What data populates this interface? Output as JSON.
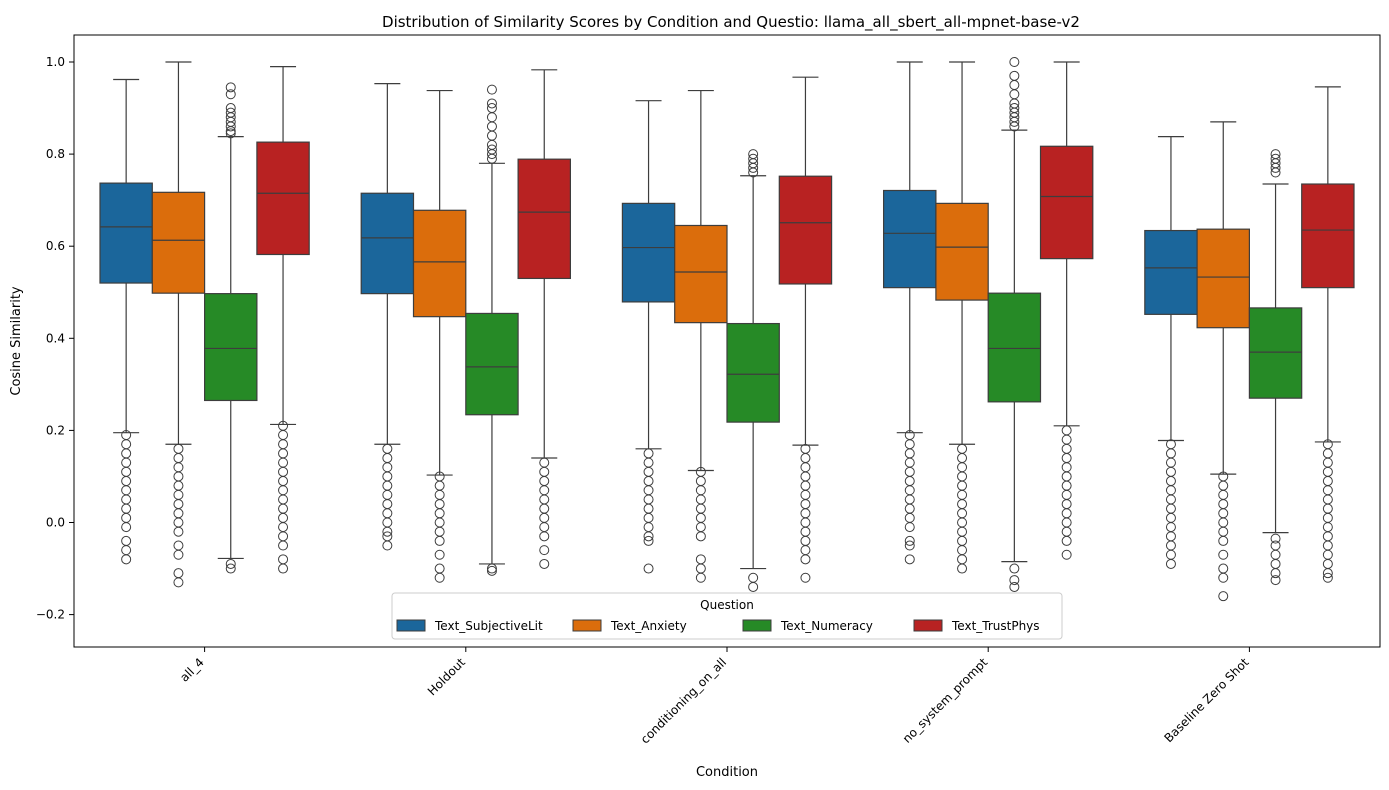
{
  "chart_data": {
    "type": "box",
    "title": "Distribution of Similarity Scores by Condition and Questio: llama_all_sbert_all-mpnet-base-v2",
    "xlabel": "Condition",
    "ylabel": "Cosine Similarity",
    "ylim": [
      -0.26,
      1.06
    ],
    "yticks": [
      -0.2,
      0.0,
      0.2,
      0.4,
      0.6,
      0.8,
      1.0
    ],
    "ytick_labels": [
      "−0.2",
      "0.0",
      "0.2",
      "0.4",
      "0.6",
      "0.8",
      "1.0"
    ],
    "categories": [
      "all_4",
      "Holdout",
      "conditioning_on_all",
      "no_system_prompt",
      "Baseline Zero Shot"
    ],
    "legend": {
      "title": "Question",
      "placement": "lower-center"
    },
    "grid": false,
    "series": [
      {
        "name": "Text_SubjectiveLit",
        "color": "#1f77b4",
        "boxes": [
          {
            "whisker_low": 0.195,
            "q1": 0.52,
            "median": 0.642,
            "q3": 0.737,
            "whisker_high": 0.962,
            "outliers": [
              0.19,
              0.17,
              0.15,
              0.13,
              0.11,
              0.09,
              0.07,
              0.05,
              0.03,
              0.01,
              -0.01,
              -0.04,
              -0.06,
              -0.08
            ]
          },
          {
            "whisker_low": 0.17,
            "q1": 0.497,
            "median": 0.618,
            "q3": 0.715,
            "whisker_high": 0.953,
            "outliers": [
              0.16,
              0.14,
              0.12,
              0.1,
              0.08,
              0.06,
              0.04,
              0.02,
              0.0,
              -0.02,
              -0.03,
              -0.05
            ]
          },
          {
            "whisker_low": 0.16,
            "q1": 0.479,
            "median": 0.597,
            "q3": 0.693,
            "whisker_high": 0.916,
            "outliers": [
              0.15,
              0.13,
              0.11,
              0.09,
              0.07,
              0.05,
              0.03,
              0.01,
              -0.01,
              -0.03,
              -0.04,
              -0.1
            ]
          },
          {
            "whisker_low": 0.195,
            "q1": 0.51,
            "median": 0.628,
            "q3": 0.721,
            "whisker_high": 1.0,
            "outliers": [
              0.19,
              0.17,
              0.15,
              0.13,
              0.11,
              0.09,
              0.07,
              0.05,
              0.03,
              0.01,
              -0.01,
              -0.04,
              -0.05,
              -0.08
            ]
          },
          {
            "whisker_low": 0.178,
            "q1": 0.452,
            "median": 0.553,
            "q3": 0.634,
            "whisker_high": 0.838,
            "outliers": [
              0.17,
              0.15,
              0.13,
              0.11,
              0.09,
              0.07,
              0.05,
              0.03,
              0.01,
              -0.01,
              -0.03,
              -0.05,
              -0.07,
              -0.09
            ]
          }
        ]
      },
      {
        "name": "Text_Anxiety",
        "color": "#ff7f0e",
        "boxes": [
          {
            "whisker_low": 0.17,
            "q1": 0.498,
            "median": 0.613,
            "q3": 0.717,
            "whisker_high": 1.0,
            "outliers": [
              0.16,
              0.14,
              0.12,
              0.1,
              0.08,
              0.06,
              0.04,
              0.02,
              0.0,
              -0.02,
              -0.05,
              -0.07,
              -0.11,
              -0.13
            ]
          },
          {
            "whisker_low": 0.103,
            "q1": 0.447,
            "median": 0.566,
            "q3": 0.678,
            "whisker_high": 0.938,
            "outliers": [
              0.1,
              0.08,
              0.06,
              0.04,
              0.02,
              0.0,
              -0.02,
              -0.04,
              -0.07,
              -0.1,
              -0.12
            ]
          },
          {
            "whisker_low": 0.113,
            "q1": 0.434,
            "median": 0.544,
            "q3": 0.645,
            "whisker_high": 0.938,
            "outliers": [
              0.11,
              0.09,
              0.07,
              0.05,
              0.03,
              0.01,
              -0.01,
              -0.03,
              -0.08,
              -0.1,
              -0.12
            ]
          },
          {
            "whisker_low": 0.17,
            "q1": 0.483,
            "median": 0.598,
            "q3": 0.693,
            "whisker_high": 1.0,
            "outliers": [
              0.16,
              0.14,
              0.12,
              0.1,
              0.08,
              0.06,
              0.04,
              0.02,
              0.0,
              -0.02,
              -0.04,
              -0.06,
              -0.08,
              -0.1
            ]
          },
          {
            "whisker_low": 0.105,
            "q1": 0.423,
            "median": 0.533,
            "q3": 0.637,
            "whisker_high": 0.87,
            "outliers": [
              0.1,
              0.08,
              0.06,
              0.04,
              0.02,
              0.0,
              -0.02,
              -0.04,
              -0.07,
              -0.1,
              -0.12,
              -0.16
            ]
          }
        ]
      },
      {
        "name": "Text_Numeracy",
        "color": "#2ca02c",
        "boxes": [
          {
            "whisker_low": -0.078,
            "q1": 0.265,
            "median": 0.378,
            "q3": 0.497,
            "whisker_high": 0.838,
            "outliers": [
              0.945,
              0.93,
              0.9,
              0.89,
              0.88,
              0.87,
              0.86,
              0.85,
              0.845,
              -0.09,
              -0.1
            ]
          },
          {
            "whisker_low": -0.09,
            "q1": 0.234,
            "median": 0.338,
            "q3": 0.454,
            "whisker_high": 0.78,
            "outliers": [
              0.94,
              0.91,
              0.9,
              0.88,
              0.86,
              0.84,
              0.82,
              0.81,
              0.8,
              0.79,
              -0.1,
              -0.105
            ]
          },
          {
            "whisker_low": -0.1,
            "q1": 0.218,
            "median": 0.322,
            "q3": 0.432,
            "whisker_high": 0.753,
            "outliers": [
              0.8,
              0.79,
              0.78,
              0.77,
              0.76,
              -0.12,
              -0.14
            ]
          },
          {
            "whisker_low": -0.085,
            "q1": 0.262,
            "median": 0.378,
            "q3": 0.498,
            "whisker_high": 0.852,
            "outliers": [
              1.0,
              0.97,
              0.95,
              0.93,
              0.91,
              0.9,
              0.89,
              0.88,
              0.87,
              0.86,
              -0.1,
              -0.125,
              -0.14
            ]
          },
          {
            "whisker_low": -0.022,
            "q1": 0.27,
            "median": 0.37,
            "q3": 0.466,
            "whisker_high": 0.735,
            "outliers": [
              0.8,
              0.79,
              0.78,
              0.77,
              0.76,
              -0.035,
              -0.05,
              -0.07,
              -0.09,
              -0.11,
              -0.125
            ]
          }
        ]
      },
      {
        "name": "Text_TrustPhys",
        "color": "#d62728",
        "boxes": [
          {
            "whisker_low": 0.213,
            "q1": 0.582,
            "median": 0.715,
            "q3": 0.826,
            "whisker_high": 0.99,
            "outliers": [
              0.21,
              0.19,
              0.17,
              0.15,
              0.13,
              0.11,
              0.09,
              0.07,
              0.05,
              0.03,
              0.01,
              -0.01,
              -0.03,
              -0.05,
              -0.08,
              -0.1
            ]
          },
          {
            "whisker_low": 0.14,
            "q1": 0.53,
            "median": 0.674,
            "q3": 0.789,
            "whisker_high": 0.983,
            "outliers": [
              0.13,
              0.11,
              0.09,
              0.07,
              0.05,
              0.03,
              0.01,
              -0.01,
              -0.03,
              -0.06,
              -0.09
            ]
          },
          {
            "whisker_low": 0.168,
            "q1": 0.518,
            "median": 0.651,
            "q3": 0.752,
            "whisker_high": 0.967,
            "outliers": [
              0.16,
              0.14,
              0.12,
              0.1,
              0.08,
              0.06,
              0.04,
              0.02,
              0.0,
              -0.02,
              -0.04,
              -0.06,
              -0.08,
              -0.12
            ]
          },
          {
            "whisker_low": 0.21,
            "q1": 0.573,
            "median": 0.708,
            "q3": 0.817,
            "whisker_high": 1.0,
            "outliers": [
              0.2,
              0.18,
              0.16,
              0.14,
              0.12,
              0.1,
              0.08,
              0.06,
              0.04,
              0.02,
              0.0,
              -0.02,
              -0.04,
              -0.07
            ]
          },
          {
            "whisker_low": 0.175,
            "q1": 0.51,
            "median": 0.635,
            "q3": 0.735,
            "whisker_high": 0.946,
            "outliers": [
              0.17,
              0.15,
              0.13,
              0.11,
              0.09,
              0.07,
              0.05,
              0.03,
              0.01,
              -0.01,
              -0.03,
              -0.05,
              -0.07,
              -0.09,
              -0.11,
              -0.12
            ]
          }
        ]
      }
    ]
  }
}
